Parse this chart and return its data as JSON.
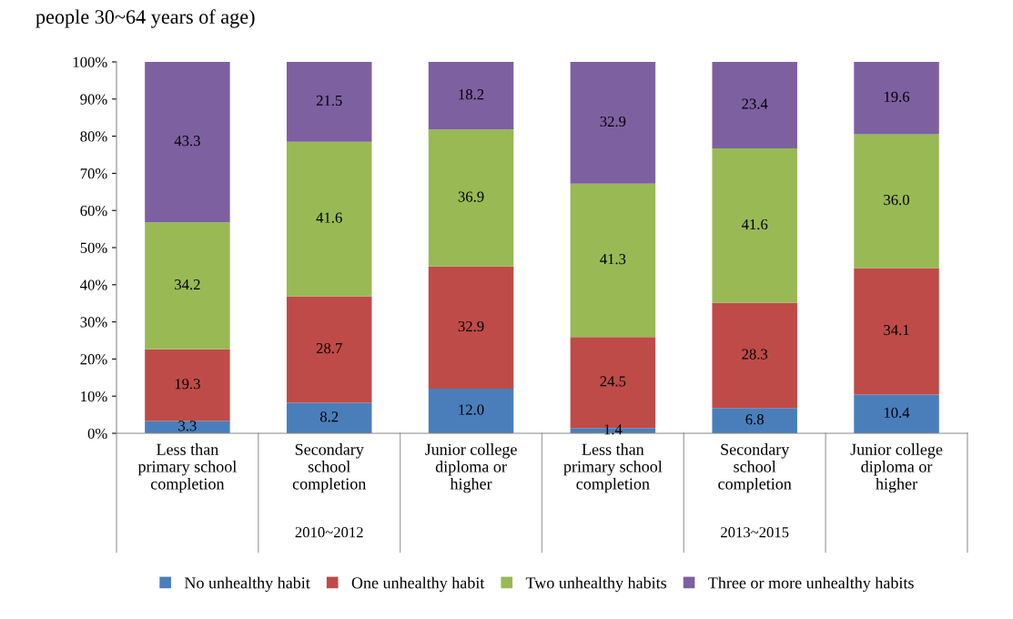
{
  "chart_data": {
    "type": "bar",
    "stacked": true,
    "title": "people 30~64 years of age)",
    "categories": [
      "Less than\nprimary school\ncompletion",
      "Secondary\nschool\ncompletion",
      "Junior college\ndiploma or\nhigher",
      "Less than\nprimary school\ncompletion",
      "Secondary\nschool\ncompletion",
      "Junior college\ndiploma or\nhigher"
    ],
    "series": [
      {
        "name": "No unhealthy habit",
        "color": "#4a7ebb",
        "values": [
          3.3,
          8.2,
          12.0,
          1.4,
          6.8,
          10.4
        ],
        "value_labels": [
          "3.3",
          "8.2",
          "12.0",
          "1.4",
          "6.8",
          "10.4"
        ]
      },
      {
        "name": "One unhealthy habit",
        "color": "#be4b48",
        "values": [
          19.3,
          28.7,
          32.9,
          24.5,
          28.3,
          34.1
        ],
        "value_labels": [
          "19.3",
          "28.7",
          "32.9",
          "24.5",
          "28.3",
          "34.1"
        ]
      },
      {
        "name": "Two unhealthy habits",
        "color": "#98b954",
        "values": [
          34.2,
          41.6,
          36.9,
          41.3,
          41.6,
          36.0
        ],
        "value_labels": [
          "34.2",
          "41.6",
          "36.9",
          "41.3",
          "41.6",
          "36.0"
        ]
      },
      {
        "name": "Three or more unhealthy habits",
        "color": "#7d60a0",
        "values": [
          43.3,
          21.5,
          18.2,
          32.9,
          23.4,
          19.6
        ],
        "value_labels": [
          "43.3",
          "21.5",
          "18.2",
          "32.9",
          "23.4",
          "19.6"
        ]
      }
    ],
    "annotations": [
      "2010~2012",
      "2013~2015"
    ],
    "ylim": [
      0,
      100
    ],
    "yticks": [
      {
        "value": 0,
        "label": "0%"
      },
      {
        "value": 10,
        "label": "10%"
      },
      {
        "value": 20,
        "label": "20%"
      },
      {
        "value": 30,
        "label": "30%"
      },
      {
        "value": 40,
        "label": "40%"
      },
      {
        "value": 50,
        "label": "50%"
      },
      {
        "value": 60,
        "label": "60%"
      },
      {
        "value": 70,
        "label": "70%"
      },
      {
        "value": 80,
        "label": "80%"
      },
      {
        "value": 90,
        "label": "90%"
      },
      {
        "value": 100,
        "label": "100%"
      }
    ],
    "grid": false,
    "legend": "bottom"
  }
}
